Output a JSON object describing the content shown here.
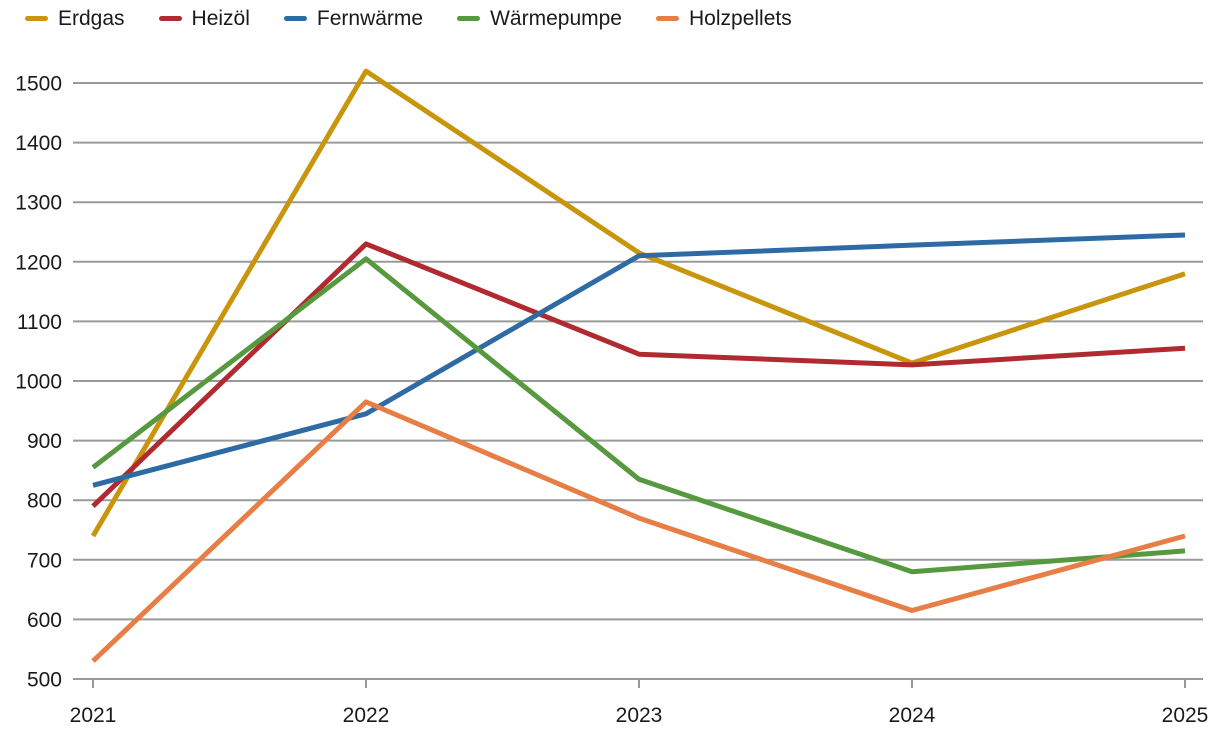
{
  "chart_data": {
    "type": "line",
    "title": "",
    "categories": [
      "2021",
      "2022",
      "2023",
      "2024",
      "2025"
    ],
    "series": [
      {
        "name": "Erdgas",
        "color": "#C8950D",
        "values": [
          740,
          1520,
          1215,
          1030,
          1180
        ]
      },
      {
        "name": "Heizöl",
        "color": "#B02A2F",
        "values": [
          790,
          1230,
          1045,
          1027,
          1055
        ]
      },
      {
        "name": "Fernwärme",
        "color": "#2E6BA4",
        "values": [
          825,
          945,
          1210,
          1228,
          1245
        ]
      },
      {
        "name": "Wärmepumpe",
        "color": "#56993E",
        "values": [
          855,
          1205,
          835,
          680,
          715
        ]
      },
      {
        "name": "Holzpellets",
        "color": "#E67E45",
        "values": [
          530,
          965,
          770,
          615,
          740
        ]
      }
    ],
    "xlabel": "",
    "ylabel": "",
    "ylim": [
      500,
      1500
    ],
    "y_step": 100,
    "y_tick_labels": [
      "500",
      "600",
      "700",
      "800",
      "900",
      "1000",
      "1100",
      "1200",
      "1300",
      "1400",
      "1500"
    ],
    "grid": "horizontal",
    "legend_position": "top-left"
  },
  "style_colors": {
    "grid": "#9a9a9a",
    "text": "#1a1a1a",
    "background": "#ffffff"
  }
}
